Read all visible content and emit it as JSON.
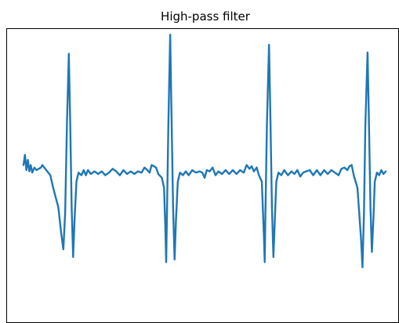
{
  "chart_data": {
    "type": "line",
    "title": "High-pass filter",
    "xlabel": "",
    "ylabel": "",
    "x_ticks_visible": false,
    "y_ticks_visible": false,
    "grid": false,
    "legend": "none",
    "xlim": [
      0,
      1
    ],
    "ylim": [
      -1.25,
      1.05
    ],
    "series": [
      {
        "color": "#1f77b4",
        "points": [
          [
            0.0,
            -0.02
          ],
          [
            0.004,
            0.06
          ],
          [
            0.008,
            -0.06
          ],
          [
            0.012,
            0.02
          ],
          [
            0.016,
            -0.07
          ],
          [
            0.02,
            -0.02
          ],
          [
            0.024,
            -0.08
          ],
          [
            0.03,
            -0.04
          ],
          [
            0.036,
            -0.06
          ],
          [
            0.042,
            -0.05
          ],
          [
            0.048,
            -0.04
          ],
          [
            0.052,
            -0.02
          ],
          [
            0.06,
            -0.05
          ],
          [
            0.074,
            -0.1
          ],
          [
            0.082,
            -0.2
          ],
          [
            0.096,
            -0.35
          ],
          [
            0.104,
            -0.55
          ],
          [
            0.11,
            -0.68
          ],
          [
            0.115,
            -0.4
          ],
          [
            0.12,
            0.3
          ],
          [
            0.125,
            0.85
          ],
          [
            0.129,
            0.3
          ],
          [
            0.133,
            -0.35
          ],
          [
            0.137,
            -0.74
          ],
          [
            0.141,
            -0.45
          ],
          [
            0.146,
            -0.15
          ],
          [
            0.152,
            -0.08
          ],
          [
            0.16,
            -0.1
          ],
          [
            0.166,
            -0.06
          ],
          [
            0.172,
            -0.1
          ],
          [
            0.178,
            -0.06
          ],
          [
            0.186,
            -0.09
          ],
          [
            0.196,
            -0.07
          ],
          [
            0.206,
            -0.09
          ],
          [
            0.216,
            -0.07
          ],
          [
            0.226,
            -0.1
          ],
          [
            0.236,
            -0.08
          ],
          [
            0.246,
            -0.05
          ],
          [
            0.256,
            -0.07
          ],
          [
            0.266,
            -0.1
          ],
          [
            0.276,
            -0.06
          ],
          [
            0.286,
            -0.09
          ],
          [
            0.296,
            -0.07
          ],
          [
            0.306,
            -0.09
          ],
          [
            0.316,
            -0.07
          ],
          [
            0.326,
            -0.08
          ],
          [
            0.334,
            -0.04
          ],
          [
            0.342,
            -0.06
          ],
          [
            0.348,
            -0.08
          ],
          [
            0.354,
            -0.02
          ],
          [
            0.36,
            -0.03
          ],
          [
            0.366,
            -0.04
          ],
          [
            0.372,
            -0.09
          ],
          [
            0.382,
            -0.12
          ],
          [
            0.388,
            -0.2
          ],
          [
            0.392,
            -0.55
          ],
          [
            0.394,
            -0.78
          ],
          [
            0.396,
            -0.4
          ],
          [
            0.4,
            0.3
          ],
          [
            0.405,
            1.0
          ],
          [
            0.409,
            0.3
          ],
          [
            0.413,
            -0.35
          ],
          [
            0.417,
            -0.76
          ],
          [
            0.421,
            -0.45
          ],
          [
            0.426,
            -0.15
          ],
          [
            0.432,
            -0.08
          ],
          [
            0.44,
            -0.1
          ],
          [
            0.448,
            -0.07
          ],
          [
            0.456,
            -0.1
          ],
          [
            0.466,
            -0.06
          ],
          [
            0.476,
            -0.08
          ],
          [
            0.486,
            -0.07
          ],
          [
            0.494,
            -0.08
          ],
          [
            0.5,
            -0.12
          ],
          [
            0.506,
            -0.06
          ],
          [
            0.514,
            -0.07
          ],
          [
            0.522,
            -0.04
          ],
          [
            0.53,
            -0.1
          ],
          [
            0.538,
            -0.07
          ],
          [
            0.548,
            -0.09
          ],
          [
            0.558,
            -0.06
          ],
          [
            0.568,
            -0.09
          ],
          [
            0.578,
            -0.06
          ],
          [
            0.588,
            -0.09
          ],
          [
            0.598,
            -0.06
          ],
          [
            0.608,
            -0.08
          ],
          [
            0.616,
            -0.02
          ],
          [
            0.624,
            -0.05
          ],
          [
            0.63,
            -0.03
          ],
          [
            0.636,
            -0.07
          ],
          [
            0.644,
            -0.04
          ],
          [
            0.65,
            -0.1
          ],
          [
            0.658,
            -0.15
          ],
          [
            0.664,
            -0.6
          ],
          [
            0.666,
            -0.78
          ],
          [
            0.668,
            -0.4
          ],
          [
            0.672,
            0.3
          ],
          [
            0.678,
            0.92
          ],
          [
            0.682,
            0.3
          ],
          [
            0.686,
            -0.35
          ],
          [
            0.69,
            -0.74
          ],
          [
            0.694,
            -0.45
          ],
          [
            0.698,
            -0.15
          ],
          [
            0.704,
            -0.08
          ],
          [
            0.712,
            -0.1
          ],
          [
            0.72,
            -0.06
          ],
          [
            0.73,
            -0.1
          ],
          [
            0.74,
            -0.07
          ],
          [
            0.748,
            -0.09
          ],
          [
            0.756,
            -0.06
          ],
          [
            0.764,
            -0.11
          ],
          [
            0.772,
            -0.08
          ],
          [
            0.78,
            -0.07
          ],
          [
            0.79,
            -0.06
          ],
          [
            0.8,
            -0.1
          ],
          [
            0.81,
            -0.06
          ],
          [
            0.82,
            -0.1
          ],
          [
            0.83,
            -0.06
          ],
          [
            0.84,
            -0.09
          ],
          [
            0.85,
            -0.06
          ],
          [
            0.86,
            -0.08
          ],
          [
            0.87,
            -0.1
          ],
          [
            0.878,
            -0.05
          ],
          [
            0.886,
            -0.04
          ],
          [
            0.894,
            -0.06
          ],
          [
            0.9,
            -0.03
          ],
          [
            0.906,
            -0.02
          ],
          [
            0.912,
            -0.1
          ],
          [
            0.922,
            -0.2
          ],
          [
            0.932,
            -0.6
          ],
          [
            0.936,
            -0.82
          ],
          [
            0.94,
            -0.4
          ],
          [
            0.944,
            0.3
          ],
          [
            0.95,
            0.86
          ],
          [
            0.954,
            0.3
          ],
          [
            0.958,
            -0.35
          ],
          [
            0.962,
            -0.7
          ],
          [
            0.966,
            -0.45
          ],
          [
            0.97,
            -0.15
          ],
          [
            0.976,
            -0.08
          ],
          [
            0.982,
            -0.1
          ],
          [
            0.988,
            -0.06
          ],
          [
            0.994,
            -0.09
          ],
          [
            1.0,
            -0.07
          ]
        ]
      }
    ]
  }
}
